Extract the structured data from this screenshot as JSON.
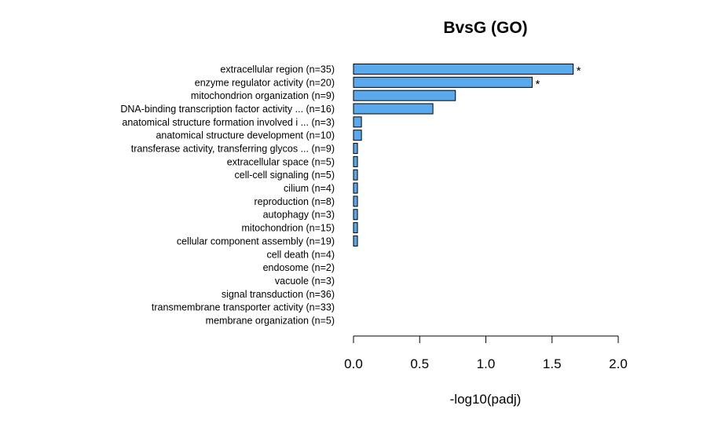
{
  "chart_data": {
    "type": "bar",
    "orientation": "horizontal",
    "title": "BvsG (GO)",
    "xlabel": "-log10(padj)",
    "ylabel": "",
    "xlim": [
      0,
      2
    ],
    "xticks": [
      "0.0",
      "0.5",
      "1.0",
      "1.5",
      "2.0"
    ],
    "bar_color": "#5aa9ec",
    "categories": [
      "extracellular region (n=35)",
      "enzyme regulator activity (n=20)",
      "mitochondrion organization (n=9)",
      "DNA-binding transcription factor activity ... (n=16)",
      "anatomical structure formation involved i ... (n=3)",
      "anatomical structure development (n=10)",
      "transferase activity, transferring glycos ... (n=9)",
      "extracellular space (n=5)",
      "cell-cell signaling (n=5)",
      "cilium (n=4)",
      "reproduction (n=8)",
      "autophagy (n=3)",
      "mitochondrion (n=15)",
      "cellular component assembly (n=19)",
      "cell death (n=4)",
      "endosome (n=2)",
      "vacuole (n=3)",
      "signal transduction (n=36)",
      "transmembrane transporter activity (n=33)",
      "membrane organization (n=5)"
    ],
    "values": [
      1.66,
      1.35,
      0.77,
      0.6,
      0.06,
      0.06,
      0.03,
      0.03,
      0.03,
      0.03,
      0.03,
      0.03,
      0.03,
      0.03,
      0.0,
      0.0,
      0.0,
      0.0,
      0.0,
      0.0
    ],
    "annotations": [
      "*",
      "*",
      "",
      "",
      "",
      "",
      "",
      "",
      "",
      "",
      "",
      "",
      "",
      "",
      "",
      "",
      "",
      "",
      "",
      ""
    ]
  }
}
